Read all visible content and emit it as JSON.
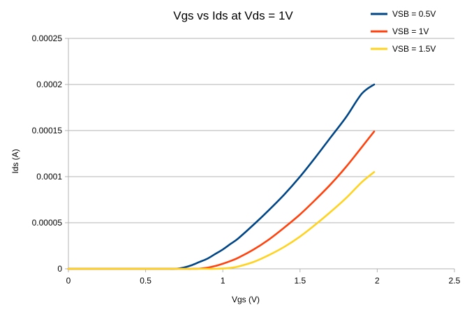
{
  "chart_data": {
    "type": "line",
    "title": "Vgs vs Ids at Vds = 1V",
    "xlabel": "Vgs (V)",
    "ylabel": "Ids (A)",
    "xlim": [
      0,
      2.5
    ],
    "ylim": [
      0,
      0.00025
    ],
    "x_ticks": [
      "0",
      "0.5",
      "1",
      "1.5",
      "2",
      "2.5"
    ],
    "y_ticks": [
      "0",
      "0.00005",
      "0.0001",
      "0.00015",
      "0.0002",
      "0.00025"
    ],
    "grid": "horizontal",
    "legend_position": "top-right",
    "x": [
      0,
      0.25,
      0.5,
      0.6,
      0.65,
      0.7,
      0.75,
      0.8,
      0.85,
      0.9,
      0.95,
      1.0,
      1.05,
      1.1,
      1.2,
      1.3,
      1.4,
      1.5,
      1.6,
      1.7,
      1.8,
      1.9,
      1.98
    ],
    "series": [
      {
        "name": "VSB = 0.5V",
        "color": "#004586",
        "values": [
          0,
          0,
          0,
          0,
          0,
          1e-07,
          1.5e-06,
          4e-06,
          7.5e-06,
          1.1e-05,
          1.6e-05,
          2.1e-05,
          2.7e-05,
          3.3e-05,
          4.8e-05,
          6.4e-05,
          8.1e-05,
          0.0001,
          0.000121,
          0.000143,
          0.000165,
          0.00019,
          0.0002
        ]
      },
      {
        "name": "VSB = 1V",
        "color": "#ff420e",
        "values": [
          0,
          0,
          0,
          0,
          0,
          0,
          0,
          0,
          2e-07,
          1.2e-06,
          3e-06,
          5.5e-06,
          8.5e-06,
          1.2e-05,
          2.1e-05,
          3.2e-05,
          4.5e-05,
          5.9e-05,
          7.5e-05,
          9.2e-05,
          0.000111,
          0.000132,
          0.000149
        ]
      },
      {
        "name": "VSB = 1.5V",
        "color": "#ffd320",
        "values": [
          0,
          0,
          0,
          0,
          0,
          0,
          0,
          0,
          0,
          0,
          0,
          3e-07,
          1e-06,
          2.5e-06,
          7.5e-06,
          1.5e-05,
          2.4e-05,
          3.5e-05,
          4.8e-05,
          6.2e-05,
          7.7e-05,
          9.4e-05,
          0.000105
        ]
      }
    ]
  }
}
